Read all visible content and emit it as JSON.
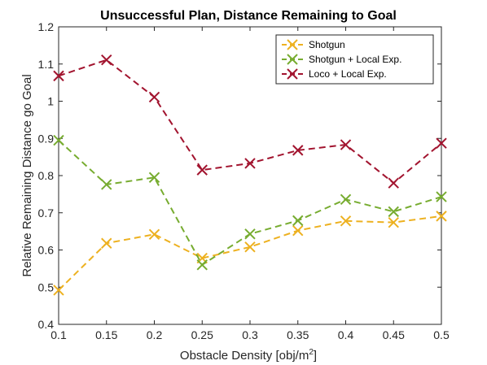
{
  "chart_data": {
    "type": "line",
    "title": "Unsuccessful Plan, Distance Remaining to Goal",
    "xlabel_prefix": "Obstacle Density [obj/m",
    "xlabel_sup": "2",
    "xlabel_suffix": "]",
    "ylabel": "Relative Remaining Distance go Goal",
    "xlim": [
      0.1,
      0.5
    ],
    "ylim": [
      0.4,
      1.2
    ],
    "xticks": [
      "0.1",
      "0.15",
      "0.2",
      "0.25",
      "0.3",
      "0.35",
      "0.4",
      "0.45",
      "0.5"
    ],
    "yticks": [
      "0.4",
      "0.5",
      "0.6",
      "0.7",
      "0.8",
      "0.9",
      "1",
      "1.1",
      "1.2"
    ],
    "grid": false,
    "legend_position": "top-right",
    "x": [
      0.1,
      0.15,
      0.2,
      0.25,
      0.3,
      0.35,
      0.4,
      0.45,
      0.5
    ],
    "series": [
      {
        "name": "Shotgun",
        "color": "#EDB120",
        "marker": "x",
        "line": "dashed",
        "values": [
          0.492,
          0.618,
          0.642,
          0.578,
          0.608,
          0.652,
          0.678,
          0.674,
          0.691
        ]
      },
      {
        "name": "Shotgun + Local Exp.",
        "color": "#77AC30",
        "marker": "x",
        "line": "dashed",
        "values": [
          0.895,
          0.776,
          0.795,
          0.56,
          0.643,
          0.679,
          0.736,
          0.703,
          0.743
        ]
      },
      {
        "name": "Loco + Local Exp.",
        "color": "#A2142F",
        "marker": "x",
        "line": "dashed",
        "values": [
          1.068,
          1.111,
          1.011,
          0.815,
          0.833,
          0.868,
          0.883,
          0.78,
          0.887
        ]
      }
    ]
  }
}
